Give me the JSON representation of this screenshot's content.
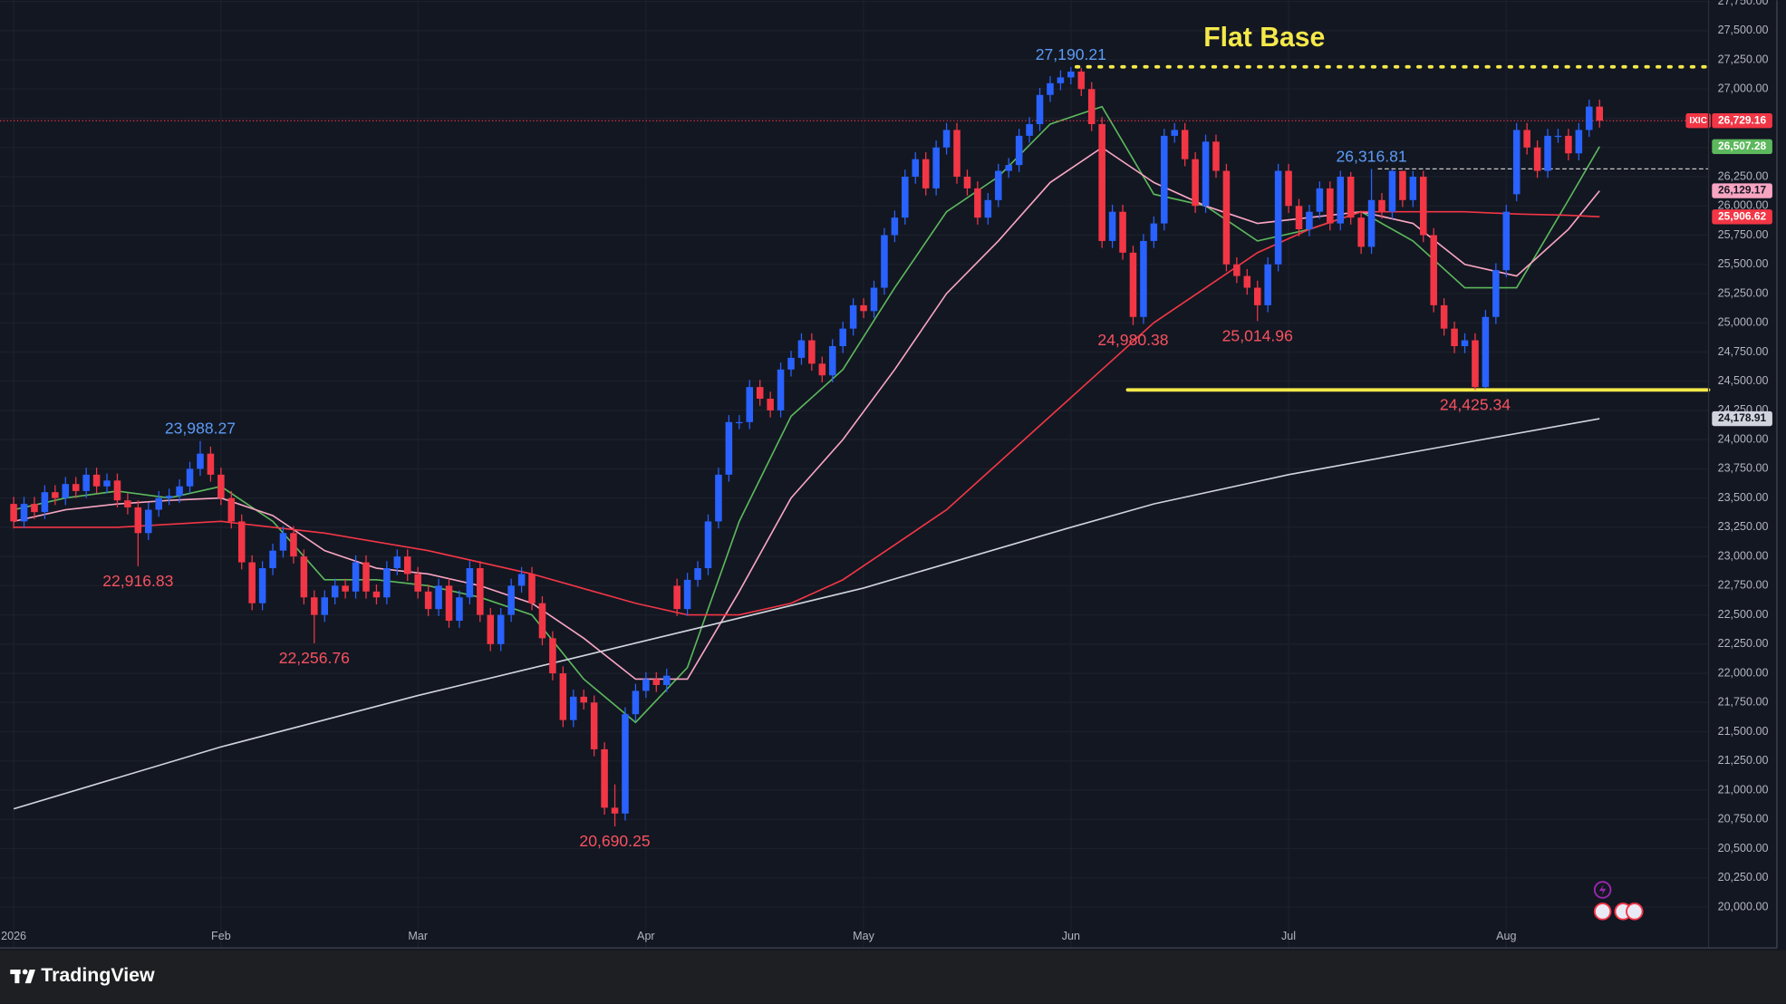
{
  "chart_data": {
    "type": "candlestick",
    "title": "Flat Base",
    "symbol": "IXIC",
    "branding": "TradingView",
    "up_color": "#2962ff",
    "down_color": "#f23645",
    "grid": true,
    "last_price": {
      "value": 26729.16,
      "label": "26,729.16"
    },
    "ylim": [
      19650,
      27760
    ],
    "yticks": [
      {
        "value": 20000,
        "label": "20,000.00"
      },
      {
        "value": 20250,
        "label": "20,250.00"
      },
      {
        "value": 20500,
        "label": "20,500.00"
      },
      {
        "value": 20750,
        "label": "20,750.00"
      },
      {
        "value": 21000,
        "label": "21,000.00"
      },
      {
        "value": 21250,
        "label": "21,250.00"
      },
      {
        "value": 21500,
        "label": "21,500.00"
      },
      {
        "value": 21750,
        "label": "21,750.00"
      },
      {
        "value": 22000,
        "label": "22,000.00"
      },
      {
        "value": 22250,
        "label": "22,250.00"
      },
      {
        "value": 22500,
        "label": "22,500.00"
      },
      {
        "value": 22750,
        "label": "22,750.00"
      },
      {
        "value": 23000,
        "label": "23,000.00"
      },
      {
        "value": 23250,
        "label": "23,250.00"
      },
      {
        "value": 23500,
        "label": "23,500.00"
      },
      {
        "value": 23750,
        "label": "23,750.00"
      },
      {
        "value": 24000,
        "label": "24,000.00"
      },
      {
        "value": 24250,
        "label": "24,250.00"
      },
      {
        "value": 24500,
        "label": "24,500.00"
      },
      {
        "value": 24750,
        "label": "24,750.00"
      },
      {
        "value": 25000,
        "label": "25,000.00"
      },
      {
        "value": 25250,
        "label": "25,250.00"
      },
      {
        "value": 25500,
        "label": "25,500.00"
      },
      {
        "value": 25750,
        "label": "25,750.00"
      },
      {
        "value": 26000,
        "label": "26,000.00"
      },
      {
        "value": 26250,
        "label": "26,250.00"
      },
      {
        "value": 26500,
        "label": "26,500.00"
      },
      {
        "value": 26750,
        "label": "26,750.00"
      },
      {
        "value": 27000,
        "label": "27,000.00"
      },
      {
        "value": 27250,
        "label": "27,250.00"
      },
      {
        "value": 27500,
        "label": "27,500.00"
      },
      {
        "value": 27750,
        "label": "27,750.00"
      }
    ],
    "categories": [
      "2026",
      null,
      null,
      null,
      null,
      null,
      null,
      null,
      null,
      null,
      null,
      null,
      null,
      null,
      null,
      null,
      null,
      null,
      null,
      null,
      "Feb",
      null,
      null,
      null,
      null,
      null,
      null,
      null,
      null,
      null,
      null,
      null,
      null,
      null,
      null,
      null,
      null,
      null,
      null,
      "Mar",
      null,
      null,
      null,
      null,
      null,
      null,
      null,
      null,
      null,
      null,
      null,
      null,
      null,
      null,
      null,
      null,
      null,
      null,
      null,
      null,
      null,
      "Apr",
      null,
      null,
      null,
      null,
      null,
      null,
      null,
      null,
      null,
      null,
      null,
      null,
      null,
      null,
      null,
      null,
      null,
      null,
      null,
      null,
      "May",
      null,
      null,
      null,
      null,
      null,
      null,
      null,
      null,
      null,
      null,
      null,
      null,
      null,
      null,
      null,
      null,
      null,
      null,
      null,
      "Jun",
      null,
      null,
      null,
      null,
      null,
      null,
      null,
      null,
      null,
      null,
      null,
      null,
      null,
      null,
      null,
      null,
      null,
      null,
      null,
      null,
      "Jul",
      null,
      null,
      null,
      null,
      null,
      null,
      null,
      null,
      null,
      null,
      null,
      null,
      null,
      null,
      null,
      null,
      null,
      null,
      null,
      null,
      "Aug",
      null,
      null,
      null,
      null,
      null,
      null,
      null,
      null,
      null
    ],
    "open": [
      23450,
      23300,
      23450,
      23380,
      23550,
      23500,
      23620,
      23560,
      23700,
      23600,
      23650,
      23480,
      23420,
      23200,
      23400,
      23500,
      23520,
      23600,
      23750,
      23880,
      23700,
      23500,
      23300,
      22950,
      22600,
      22900,
      23050,
      23200,
      23000,
      22650,
      22500,
      22650,
      22750,
      22700,
      22950,
      22700,
      22650,
      22900,
      23000,
      22850,
      22700,
      22550,
      22750,
      22450,
      22650,
      22900,
      22500,
      22250,
      22500,
      22750,
      22850,
      22600,
      22300,
      22000,
      21600,
      21800,
      21750,
      21350,
      20850,
      20800,
      21650,
      21850,
      21950,
      21900,
      22750,
      22550,
      22800,
      22900,
      23300,
      23700,
      24150,
      24150,
      24450,
      24350,
      24250,
      24600,
      24700,
      24850,
      24650,
      24550,
      24800,
      24950,
      25150,
      25100,
      25300,
      25750,
      25900,
      26250,
      26400,
      26150,
      26500,
      26650,
      26250,
      26150,
      25900,
      26050,
      26300,
      26350,
      26600,
      26700,
      26950,
      27050,
      27100,
      27150,
      27000,
      26700,
      25700,
      25950,
      25600,
      25050,
      25700,
      25850,
      26600,
      26650,
      26400,
      26000,
      26550,
      26300,
      25500,
      25400,
      25300,
      25150,
      25500,
      26300,
      26000,
      25800,
      25950,
      26150,
      25850,
      26250,
      25900,
      25650,
      26050,
      25950,
      26300,
      26050,
      26250,
      25750,
      25150,
      24950,
      24800,
      24850,
      24450,
      25050,
      25450,
      26100,
      26650,
      26500,
      26300,
      26600,
      26600,
      26450,
      26650,
      26850
    ],
    "high": [
      23510,
      23510,
      23510,
      23610,
      23610,
      23680,
      23680,
      23760,
      23760,
      23710,
      23710,
      23540,
      23480,
      23460,
      23560,
      23580,
      23660,
      23810,
      23988.27,
      23940,
      23760,
      23560,
      23360,
      23010,
      22960,
      23110,
      23260,
      23260,
      23060,
      22710,
      22710,
      22810,
      22810,
      23010,
      23010,
      22760,
      22960,
      23060,
      23060,
      22910,
      22760,
      22810,
      22810,
      22710,
      22960,
      22960,
      22560,
      22560,
      22810,
      22910,
      22910,
      22660,
      22360,
      22060,
      21860,
      21860,
      21810,
      21410,
      21050,
      21710,
      21910,
      22010,
      22010,
      22040,
      22810,
      22860,
      22960,
      23360,
      23760,
      24210,
      24210,
      24510,
      24510,
      24410,
      24660,
      24760,
      24910,
      24910,
      24710,
      24860,
      25010,
      25210,
      25210,
      25360,
      25810,
      25960,
      26310,
      26460,
      26460,
      26560,
      26710,
      26710,
      26310,
      26210,
      26110,
      26360,
      26410,
      26660,
      26760,
      27010,
      27110,
      27160,
      27190.21,
      27180,
      27060,
      26760,
      26010,
      26010,
      25660,
      25760,
      25910,
      26660,
      26710,
      26710,
      26460,
      26610,
      26610,
      26360,
      25560,
      25460,
      25360,
      25560,
      26360,
      26360,
      26060,
      26010,
      26210,
      26210,
      26300,
      26290,
      25960,
      26316.81,
      26110,
      26310,
      26300,
      26300,
      26300,
      25810,
      25210,
      25010,
      24910,
      24910,
      25110,
      25510,
      26010,
      26710,
      26710,
      26560,
      26660,
      26660,
      26660,
      26710,
      26910,
      26910
    ],
    "low": [
      23240,
      23240,
      23320,
      23320,
      23440,
      23440,
      23500,
      23500,
      23540,
      23540,
      23420,
      23360,
      22916.83,
      23140,
      23340,
      23440,
      23460,
      23540,
      23690,
      23640,
      23440,
      23240,
      22890,
      22540,
      22540,
      22840,
      22990,
      22940,
      22590,
      22256.76,
      22440,
      22590,
      22640,
      22640,
      22640,
      22590,
      22590,
      22840,
      22790,
      22640,
      22490,
      22490,
      22390,
      22390,
      22590,
      22440,
      22190,
      22190,
      22440,
      22690,
      22540,
      22240,
      21940,
      21540,
      21540,
      21690,
      21290,
      20790,
      20690.25,
      20740,
      21590,
      21790,
      21840,
      21840,
      22490,
      22490,
      22740,
      22840,
      23240,
      23640,
      24090,
      24090,
      24290,
      24190,
      24190,
      24540,
      24640,
      24590,
      24490,
      24490,
      24740,
      24890,
      25040,
      25040,
      25240,
      25690,
      25840,
      26190,
      26090,
      26090,
      26440,
      26190,
      26090,
      25840,
      25840,
      25990,
      26240,
      26290,
      26540,
      26640,
      26890,
      26990,
      27040,
      26940,
      26640,
      25640,
      25640,
      25540,
      24980.38,
      24990,
      25640,
      25790,
      26540,
      26340,
      25940,
      25940,
      26240,
      25440,
      25340,
      25240,
      25014.96,
      25090,
      25440,
      25940,
      25740,
      25740,
      25890,
      25790,
      25790,
      25840,
      25590,
      25590,
      25890,
      25890,
      25990,
      25990,
      25690,
      25090,
      24890,
      24740,
      24740,
      24425.34,
      24440,
      24990,
      25390,
      26040,
      26440,
      26240,
      26240,
      26540,
      26390,
      26390,
      26590,
      26670
    ],
    "close": [
      23300,
      23450,
      23380,
      23550,
      23500,
      23620,
      23560,
      23700,
      23600,
      23650,
      23480,
      23420,
      23200,
      23400,
      23500,
      23520,
      23600,
      23750,
      23880,
      23700,
      23500,
      23300,
      22950,
      22600,
      22900,
      23050,
      23200,
      23000,
      22650,
      22500,
      22650,
      22750,
      22700,
      22950,
      22700,
      22650,
      22900,
      23000,
      22850,
      22700,
      22550,
      22750,
      22450,
      22650,
      22900,
      22500,
      22250,
      22500,
      22750,
      22850,
      22600,
      22300,
      22000,
      21600,
      21800,
      21750,
      21350,
      20850,
      20800,
      21650,
      21850,
      21950,
      21900,
      21980,
      22550,
      22800,
      22900,
      23300,
      23700,
      24150,
      24150,
      24450,
      24350,
      24250,
      24600,
      24700,
      24850,
      24650,
      24550,
      24800,
      24950,
      25150,
      25100,
      25300,
      25750,
      25900,
      26250,
      26400,
      26150,
      26500,
      26650,
      26250,
      26150,
      25900,
      26050,
      26300,
      26350,
      26600,
      26700,
      26950,
      27050,
      27100,
      27150,
      27000,
      26700,
      25700,
      25950,
      25600,
      25050,
      25700,
      25850,
      26600,
      26650,
      26400,
      26000,
      26550,
      26300,
      25500,
      25400,
      25300,
      25150,
      25500,
      26300,
      26000,
      25800,
      25950,
      26150,
      25850,
      26250,
      25900,
      25650,
      26050,
      25950,
      26300,
      26050,
      26250,
      25750,
      25150,
      24950,
      24800,
      24850,
      24450,
      25050,
      25450,
      25950,
      26650,
      26500,
      26300,
      26600,
      26600,
      26450,
      26650,
      26850,
      26729.16
    ],
    "lines": [
      {
        "color": "#5cb85c",
        "x": [
          0,
          5,
          10,
          15,
          20,
          25,
          30,
          35,
          40,
          45,
          50,
          55,
          60,
          65,
          70,
          75,
          80,
          85,
          90,
          95,
          100,
          105,
          110,
          115,
          120,
          125,
          130,
          135,
          140,
          145,
          150,
          153
        ],
        "values": [
          23400,
          23500,
          23560,
          23500,
          23600,
          23300,
          22800,
          22800,
          22750,
          22650,
          22500,
          21950,
          21580,
          22050,
          23300,
          24200,
          24600,
          25300,
          25950,
          26250,
          26700,
          26850,
          26100,
          26000,
          25700,
          25800,
          25950,
          25700,
          25300,
          25300,
          26050,
          26507.28
        ],
        "last": {
          "value": 26507.28,
          "label": "26,507.28"
        }
      },
      {
        "color": "#f8a5c2",
        "x": [
          0,
          5,
          10,
          15,
          20,
          25,
          30,
          35,
          40,
          45,
          50,
          55,
          60,
          65,
          70,
          75,
          80,
          85,
          90,
          95,
          100,
          105,
          110,
          115,
          120,
          125,
          130,
          135,
          140,
          145,
          150,
          153
        ],
        "values": [
          23300,
          23400,
          23450,
          23480,
          23500,
          23350,
          23050,
          22900,
          22850,
          22750,
          22600,
          22300,
          21950,
          21950,
          22700,
          23500,
          24000,
          24600,
          25250,
          25700,
          26200,
          26500,
          26200,
          26000,
          25850,
          25900,
          25950,
          25850,
          25500,
          25400,
          25800,
          26129.17
        ],
        "last": {
          "value": 26129.17,
          "label": "26,129.17"
        }
      },
      {
        "color": "#f23645",
        "x": [
          0,
          10,
          20,
          30,
          40,
          50,
          60,
          65,
          70,
          75,
          80,
          85,
          90,
          95,
          100,
          105,
          110,
          115,
          120,
          125,
          130,
          135,
          140,
          145,
          150,
          153
        ],
        "values": [
          23250,
          23250,
          23300,
          23200,
          23050,
          22850,
          22600,
          22500,
          22500,
          22600,
          22800,
          23100,
          23400,
          23800,
          24200,
          24600,
          25000,
          25300,
          25600,
          25800,
          25950,
          25950,
          25950,
          25930,
          25920,
          25906.62
        ],
        "last": {
          "value": 25906.62,
          "label": "25,906.62"
        }
      },
      {
        "color": "#d1d4dc",
        "x": [
          0,
          20,
          39,
          61,
          82,
          102,
          110,
          123,
          141,
          153
        ],
        "values": [
          20840,
          21370,
          21810,
          22280,
          22730,
          23250,
          23450,
          23700,
          23990,
          24178.91
        ],
        "last": {
          "value": 24178.91,
          "label": "24,178.91"
        }
      }
    ],
    "levels": [
      {
        "value": 27190.21,
        "color": "#f5e94a",
        "style": "dotted"
      },
      {
        "value": 24425.34,
        "color": "#f5e94a",
        "style": "solid"
      },
      {
        "value": 26316.81,
        "color": "#c8c8c8",
        "style": "dashed"
      }
    ],
    "annotations": [
      {
        "label": "23,988.27",
        "value": 23988.27,
        "kind": "high"
      },
      {
        "label": "22,916.83",
        "value": 22916.83,
        "kind": "low"
      },
      {
        "label": "22,256.76",
        "value": 22256.76,
        "kind": "low"
      },
      {
        "label": "20,690.25",
        "value": 20690.25,
        "kind": "low"
      },
      {
        "label": "27,190.21",
        "value": 27190.21,
        "kind": "high"
      },
      {
        "label": "24,980.38",
        "value": 24980.38,
        "kind": "low"
      },
      {
        "label": "25,014.96",
        "value": 25014.96,
        "kind": "low"
      },
      {
        "label": "26,316.81",
        "value": 26316.81,
        "kind": "high"
      },
      {
        "label": "24,425.34",
        "value": 24425.34,
        "kind": "low"
      }
    ]
  }
}
